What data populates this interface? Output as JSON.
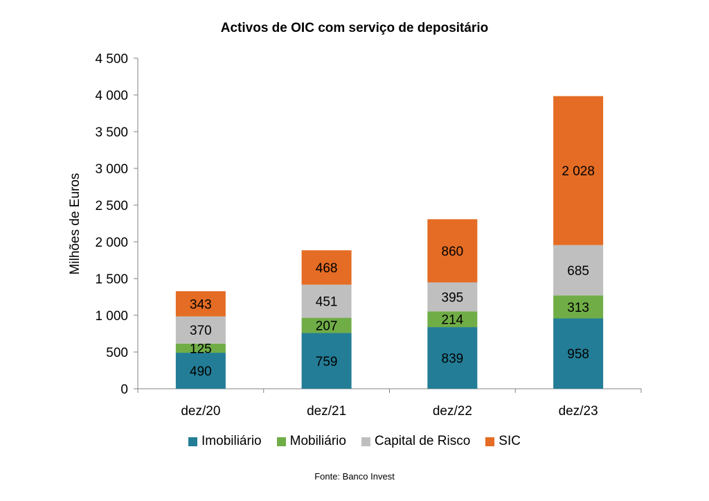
{
  "chart_data": {
    "type": "bar",
    "stacked": true,
    "title": "Activos de OIC com serviço de depositário",
    "ylabel": "Milhões de Euros",
    "xlabel": "",
    "ylim": [
      0,
      4500
    ],
    "yticks": [
      0,
      500,
      1000,
      1500,
      2000,
      2500,
      3000,
      3500,
      4000,
      4500
    ],
    "ytick_labels": [
      "0",
      "500",
      "1 000",
      "1 500",
      "2 000",
      "2 500",
      "3 000",
      "3 500",
      "4 000",
      "4 500"
    ],
    "categories": [
      "dez/20",
      "dez/21",
      "dez/22",
      "dez/23"
    ],
    "series": [
      {
        "name": "Imobiliário",
        "color": "#237d96",
        "values": [
          490,
          759,
          839,
          958
        ],
        "labels": [
          "490",
          "759",
          "839",
          "958"
        ]
      },
      {
        "name": "Mobiliário",
        "color": "#70ad47",
        "values": [
          125,
          207,
          214,
          313
        ],
        "labels": [
          "125",
          "207",
          "214",
          "313"
        ]
      },
      {
        "name": "Capital de Risco",
        "color": "#bfbfbf",
        "values": [
          370,
          451,
          395,
          685
        ],
        "labels": [
          "370",
          "451",
          "395",
          "685"
        ]
      },
      {
        "name": "SIC",
        "color": "#e46c24",
        "values": [
          343,
          468,
          860,
          2028
        ],
        "labels": [
          "343",
          "468",
          "860",
          "2 028"
        ]
      }
    ],
    "grid": false,
    "legend_position": "bottom"
  },
  "source": "Fonte: Banco Invest"
}
